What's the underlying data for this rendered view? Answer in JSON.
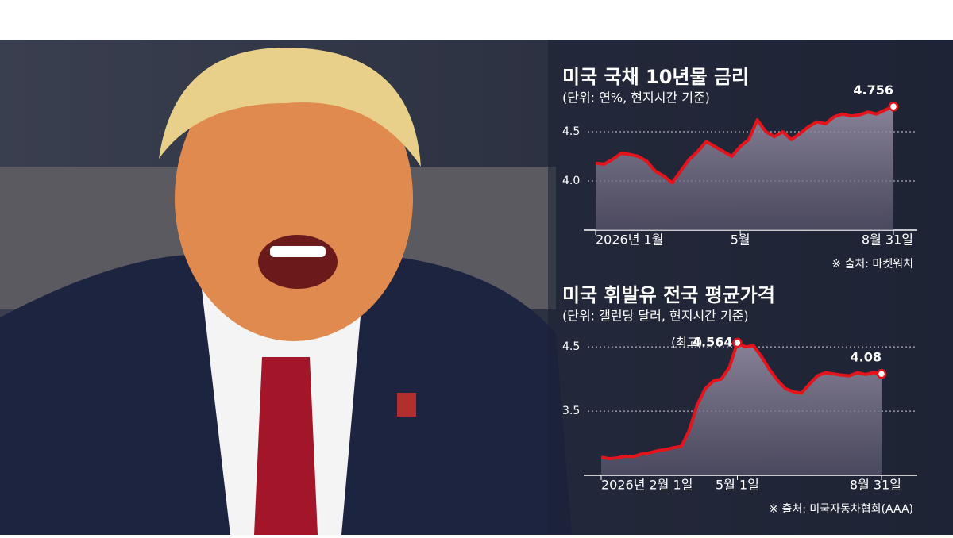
{
  "chart_data": [
    {
      "type": "line",
      "title": "미국 국채 10년물 금리",
      "subtitle": "(단위: 연%, 현지시간 기준)",
      "source": "※ 출처: 마켓워치",
      "categories": [
        "2026년 1월",
        null,
        null,
        null,
        null,
        null,
        null,
        null,
        null,
        null,
        null,
        null,
        null,
        null,
        null,
        null,
        null,
        "5월",
        null,
        null,
        null,
        null,
        null,
        null,
        null,
        null,
        null,
        null,
        null,
        null,
        null,
        null,
        null,
        null,
        null,
        "8월 31일"
      ],
      "series": [
        {
          "color": "#e3141c",
          "values": [
            4.18,
            4.17,
            4.22,
            4.28,
            4.27,
            4.25,
            4.2,
            4.1,
            4.05,
            3.98,
            4.1,
            4.22,
            4.3,
            4.4,
            4.35,
            4.3,
            4.25,
            4.35,
            4.42,
            4.62,
            4.5,
            4.45,
            4.5,
            4.42,
            4.48,
            4.55,
            4.6,
            4.58,
            4.65,
            4.68,
            4.66,
            4.67,
            4.7,
            4.68,
            4.72,
            4.756
          ]
        }
      ],
      "ylim": [
        3.5,
        5.0
      ],
      "yticks": [
        {
          "value": 4,
          "label": "4.0"
        },
        4.5
      ],
      "grid": true
    },
    {
      "type": "line",
      "title": "미국 휘발유 전국 평균가격",
      "subtitle": "(단위: 갤런당 달러, 현지시간 기준)",
      "source": "※ 출처: 미국자동차협회(AAA)",
      "annotation": "(최고)",
      "categories": [
        "2026년 2월 1일",
        null,
        null,
        null,
        null,
        null,
        null,
        null,
        null,
        null,
        null,
        null,
        null,
        null,
        null,
        null,
        null,
        "5월 1일",
        null,
        null,
        null,
        null,
        null,
        null,
        null,
        null,
        null,
        null,
        null,
        null,
        null,
        null,
        null,
        null,
        null,
        "8월 31일"
      ],
      "series": [
        {
          "color": "#e3141c",
          "values": [
            2.78,
            2.76,
            2.77,
            2.8,
            2.79,
            2.83,
            2.85,
            2.88,
            2.9,
            2.93,
            2.95,
            3.2,
            3.6,
            3.85,
            3.97,
            4.0,
            4.18,
            4.564,
            4.5,
            4.52,
            4.35,
            4.15,
            3.98,
            3.85,
            3.8,
            3.78,
            3.92,
            4.05,
            4.1,
            4.08,
            4.06,
            4.05,
            4.1,
            4.07,
            4.1,
            4.08
          ]
        }
      ],
      "ylim": [
        2.5,
        4.7
      ],
      "yticks": [
        3.5,
        4.5
      ],
      "grid": true
    }
  ]
}
